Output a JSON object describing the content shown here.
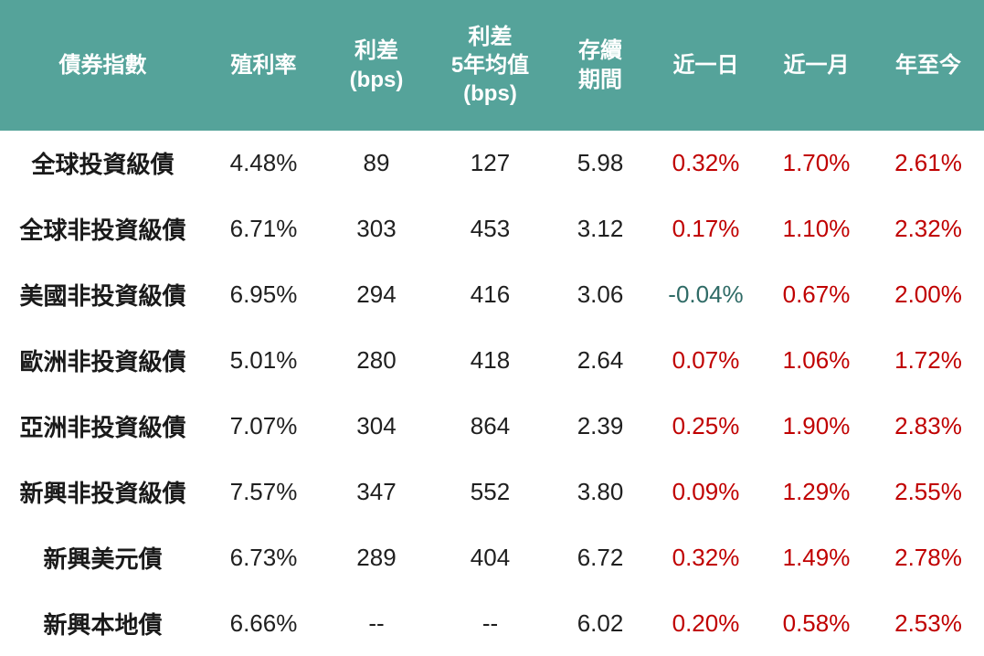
{
  "colors": {
    "header_bg": "#55A39A",
    "header_text": "#FFFFFF",
    "body_text": "#1F1F1F",
    "positive_change": "#C00000",
    "negative_change": "#2F6B66"
  },
  "chart_data": {
    "type": "table",
    "columns": [
      "債券指數",
      "殖利率",
      "利差\n(bps)",
      "利差\n5年均值\n(bps)",
      "存續\n期間",
      "近一日",
      "近一月",
      "年至今"
    ],
    "rows": [
      [
        "全球投資級債",
        "4.48%",
        "89",
        "127",
        "5.98",
        "0.32%",
        "1.70%",
        "2.61%"
      ],
      [
        "全球非投資級債",
        "6.71%",
        "303",
        "453",
        "3.12",
        "0.17%",
        "1.10%",
        "2.32%"
      ],
      [
        "美國非投資級債",
        "6.95%",
        "294",
        "416",
        "3.06",
        "-0.04%",
        "0.67%",
        "2.00%"
      ],
      [
        "歐洲非投資級債",
        "5.01%",
        "280",
        "418",
        "2.64",
        "0.07%",
        "1.06%",
        "1.72%"
      ],
      [
        "亞洲非投資級債",
        "7.07%",
        "304",
        "864",
        "2.39",
        "0.25%",
        "1.90%",
        "2.83%"
      ],
      [
        "新興非投資級債",
        "7.57%",
        "347",
        "552",
        "3.80",
        "0.09%",
        "1.29%",
        "2.55%"
      ],
      [
        "新興美元債",
        "6.73%",
        "289",
        "404",
        "6.72",
        "0.32%",
        "1.49%",
        "2.78%"
      ],
      [
        "新興本地債",
        "6.66%",
        "--",
        "--",
        "6.02",
        "0.20%",
        "0.58%",
        "2.53%"
      ]
    ]
  }
}
